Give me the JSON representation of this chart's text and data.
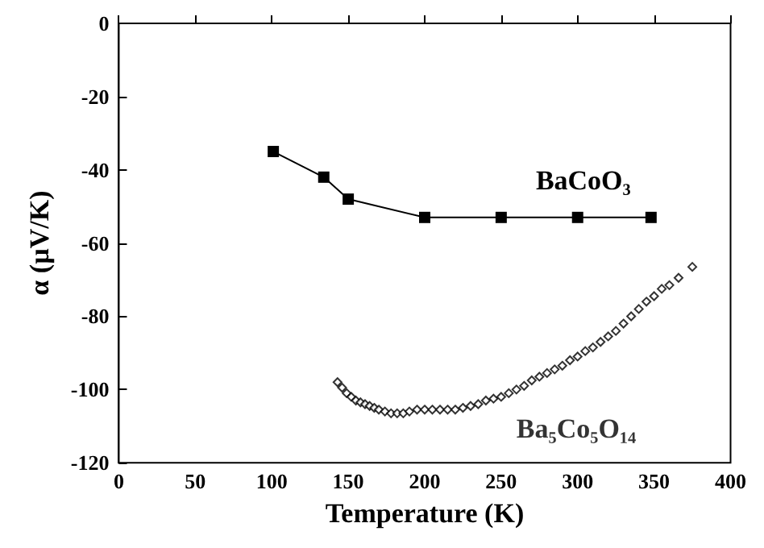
{
  "chart_data": {
    "type": "line",
    "xlabel": "Temperature (K)",
    "ylabel": "α (µV/K)",
    "xlim": [
      0,
      400
    ],
    "xticks": [
      0,
      50,
      100,
      150,
      200,
      250,
      300,
      350,
      400
    ],
    "ylim": [
      -120,
      0
    ],
    "yticks": [
      -120,
      -100,
      -80,
      -60,
      -40,
      -20,
      0
    ],
    "grid": false,
    "legend": false,
    "series": [
      {
        "name": "BaCoO₃",
        "color": "#000000",
        "marker": "square",
        "x": [
          101,
          134,
          150,
          200,
          250,
          300,
          348
        ],
        "values": [
          -35,
          -42,
          -48,
          -53,
          -53,
          -53,
          -53
        ]
      },
      {
        "name": "Ba₅Co₅O₁₄",
        "color": "#000000",
        "type": "scatter",
        "marker": "diamond",
        "x": [
          143,
          146,
          149,
          152,
          155,
          158,
          161,
          164,
          167,
          170,
          174,
          178,
          182,
          186,
          190,
          195,
          200,
          205,
          210,
          215,
          220,
          225,
          230,
          235,
          240,
          245,
          250,
          255,
          260,
          265,
          270,
          275,
          280,
          285,
          290,
          295,
          300,
          305,
          310,
          315,
          320,
          325,
          330,
          335,
          340,
          345,
          350,
          355,
          360,
          366,
          375
        ],
        "values": [
          -98,
          -99.5,
          -101,
          -102,
          -103,
          -103.5,
          -104,
          -104.5,
          -105,
          -105.5,
          -106,
          -106.5,
          -106.5,
          -106.5,
          -106,
          -105.5,
          -105.5,
          -105.5,
          -105.5,
          -105.5,
          -105.5,
          -105,
          -104.5,
          -104,
          -103,
          -102.5,
          -102,
          -101,
          -100,
          -99,
          -97.5,
          -96.5,
          -95.5,
          -94.5,
          -93.5,
          -92,
          -91,
          -89.5,
          -88.5,
          -87,
          -85.5,
          -84,
          -82,
          -80,
          -78,
          -76,
          -74.5,
          -72.5,
          -71.5,
          -69.5,
          -66.5
        ]
      }
    ]
  }
}
